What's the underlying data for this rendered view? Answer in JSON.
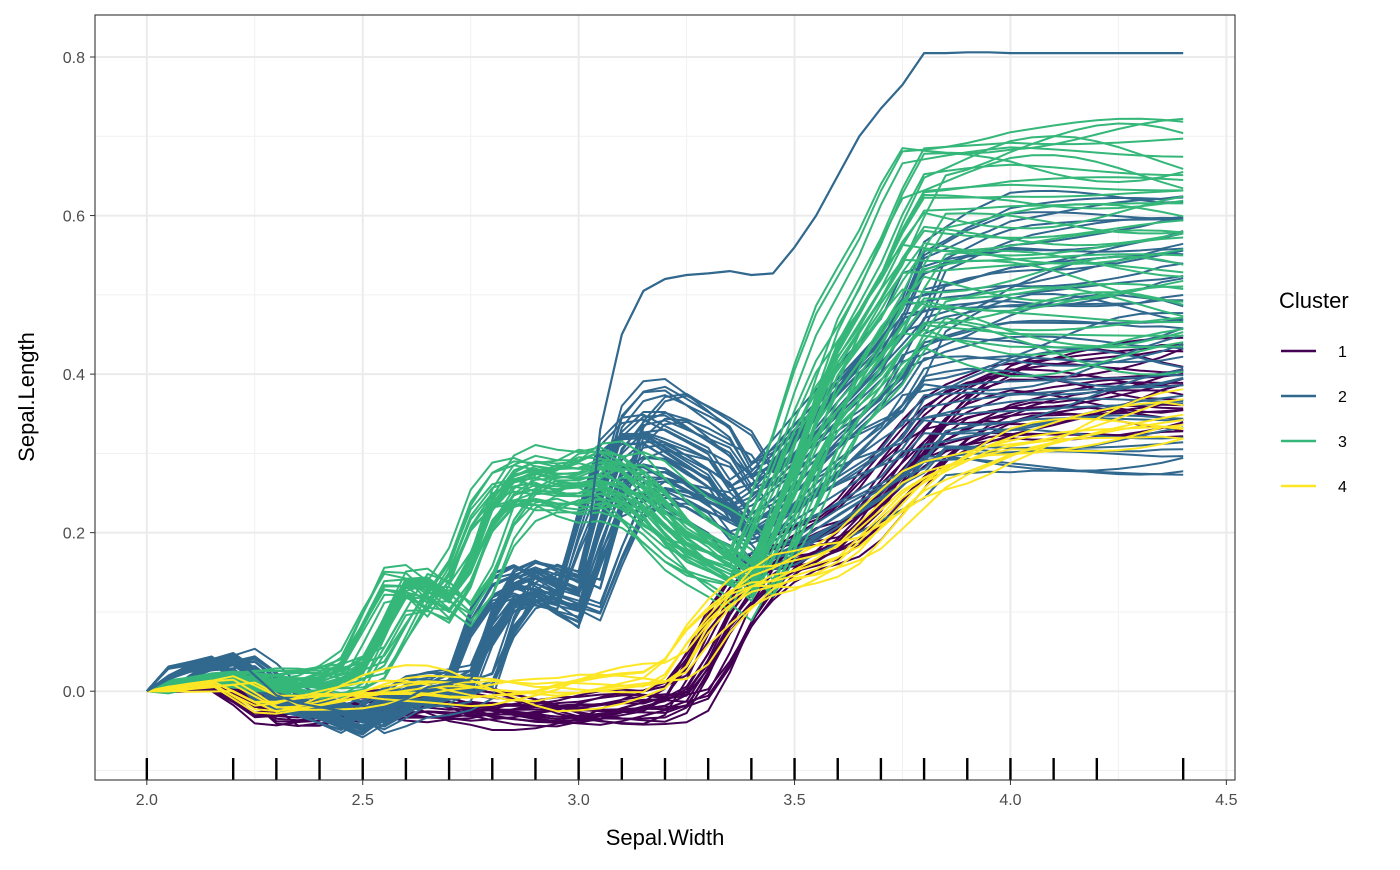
{
  "chart_data": {
    "type": "line",
    "title": "",
    "xlabel": "Sepal.Width",
    "ylabel": "Sepal.Length",
    "xlim": [
      1.88,
      4.52
    ],
    "ylim": [
      -0.112,
      0.853
    ],
    "xticks": [
      2.0,
      2.5,
      3.0,
      3.5,
      4.0,
      4.5
    ],
    "xtick_labels": [
      "2.0",
      "2.5",
      "3.0",
      "3.5",
      "4.0",
      "4.5"
    ],
    "yticks": [
      0.0,
      0.2,
      0.4,
      0.6,
      0.8
    ],
    "ytick_labels": [
      "0.0",
      "0.2",
      "0.4",
      "0.6",
      "0.8"
    ],
    "grid": true,
    "legend": {
      "title": "Cluster",
      "position": "right",
      "entries": [
        {
          "label": "1",
          "color": "#440154"
        },
        {
          "label": "2",
          "color": "#31688E"
        },
        {
          "label": "3",
          "color": "#35B779"
        },
        {
          "label": "4",
          "color": "#FDE725"
        }
      ]
    },
    "rug_x": [
      2.0,
      2.2,
      2.3,
      2.4,
      2.5,
      2.6,
      2.7,
      2.8,
      2.9,
      3.0,
      3.1,
      3.2,
      3.3,
      3.4,
      3.5,
      3.6,
      3.7,
      3.8,
      3.9,
      4.0,
      4.1,
      4.2,
      4.4
    ],
    "x": [
      2.0,
      2.05,
      2.1,
      2.15,
      2.2,
      2.25,
      2.3,
      2.35,
      2.4,
      2.45,
      2.5,
      2.55,
      2.6,
      2.65,
      2.7,
      2.75,
      2.8,
      2.85,
      2.9,
      2.95,
      3.0,
      3.05,
      3.1,
      3.15,
      3.2,
      3.25,
      3.3,
      3.35,
      3.4,
      3.45,
      3.5,
      3.55,
      3.6,
      3.65,
      3.7,
      3.75,
      3.8,
      3.85,
      3.9,
      3.95,
      4.0,
      4.05,
      4.1,
      4.15,
      4.2,
      4.25,
      4.3,
      4.35,
      4.4
    ],
    "cluster_profiles": [
      {
        "cluster": "1",
        "color": "#440154",
        "count": 24,
        "final_range": [
          0.33,
          0.44
        ],
        "profile": [
          0.0,
          0.002,
          0.003,
          0.004,
          0.004,
          -0.01,
          -0.03,
          -0.03,
          -0.025,
          -0.025,
          -0.02,
          -0.015,
          -0.01,
          -0.012,
          -0.015,
          -0.015,
          -0.02,
          -0.022,
          -0.025,
          -0.027,
          -0.03,
          -0.028,
          -0.025,
          -0.022,
          -0.02,
          -0.008,
          0.035,
          0.09,
          0.13,
          0.16,
          0.18,
          0.19,
          0.2,
          0.22,
          0.25,
          0.28,
          0.31,
          0.335,
          0.35,
          0.36,
          0.37,
          0.372,
          0.375,
          0.377,
          0.38,
          0.382,
          0.384,
          0.386,
          0.39
        ]
      },
      {
        "cluster": "2",
        "color": "#31688E",
        "count": 48,
        "final_range": [
          0.28,
          0.63
        ],
        "profile": [
          0.0,
          0.018,
          0.03,
          0.035,
          0.04,
          0.02,
          -0.005,
          -0.015,
          -0.02,
          -0.03,
          -0.04,
          -0.025,
          -0.01,
          -0.005,
          0.0,
          0.01,
          0.08,
          0.12,
          0.13,
          0.12,
          0.11,
          0.19,
          0.26,
          0.28,
          0.28,
          0.265,
          0.25,
          0.235,
          0.2,
          0.21,
          0.23,
          0.25,
          0.27,
          0.29,
          0.31,
          0.33,
          0.37,
          0.375,
          0.38,
          0.382,
          0.385,
          0.386,
          0.387,
          0.388,
          0.389,
          0.39,
          0.391,
          0.392,
          0.395
        ]
      },
      {
        "cluster": "3",
        "color": "#35B779",
        "count": 40,
        "final_range": [
          0.42,
          0.71
        ],
        "profile": [
          0.0,
          0.008,
          0.012,
          0.015,
          0.015,
          0.012,
          0.012,
          0.01,
          0.008,
          0.015,
          0.03,
          0.08,
          0.13,
          0.13,
          0.11,
          0.15,
          0.22,
          0.255,
          0.265,
          0.26,
          0.26,
          0.27,
          0.265,
          0.245,
          0.215,
          0.19,
          0.175,
          0.16,
          0.14,
          0.2,
          0.26,
          0.33,
          0.39,
          0.43,
          0.47,
          0.52,
          0.56,
          0.56,
          0.56,
          0.56,
          0.56,
          0.56,
          0.56,
          0.56,
          0.56,
          0.56,
          0.56,
          0.56,
          0.56
        ]
      },
      {
        "cluster": "4",
        "color": "#FDE725",
        "count": 10,
        "final_range": [
          0.33,
          0.36
        ],
        "profile": [
          0.0,
          0.003,
          0.005,
          0.008,
          0.01,
          -0.005,
          -0.02,
          -0.02,
          -0.015,
          -0.01,
          -0.005,
          0.0,
          0.005,
          0.008,
          0.008,
          0.005,
          0.003,
          0.003,
          0.001,
          0.0,
          0.004,
          0.006,
          0.008,
          0.01,
          0.012,
          0.03,
          0.07,
          0.1,
          0.125,
          0.14,
          0.145,
          0.155,
          0.165,
          0.18,
          0.205,
          0.23,
          0.255,
          0.27,
          0.28,
          0.29,
          0.3,
          0.305,
          0.31,
          0.315,
          0.32,
          0.325,
          0.33,
          0.335,
          0.34
        ]
      }
    ],
    "highlighted_lines": [
      {
        "cluster": "2",
        "color": "#31688E",
        "y": [
          0.0,
          0.015,
          0.025,
          0.035,
          0.045,
          0.02,
          -0.005,
          -0.015,
          -0.02,
          -0.025,
          -0.03,
          -0.02,
          -0.01,
          0.005,
          0.01,
          0.015,
          0.06,
          0.1,
          0.12,
          0.1,
          0.08,
          0.33,
          0.45,
          0.505,
          0.52,
          0.525,
          0.527,
          0.53,
          0.525,
          0.527,
          0.56,
          0.6,
          0.65,
          0.7,
          0.735,
          0.765,
          0.805,
          0.805,
          0.806,
          0.806,
          0.805,
          0.805,
          0.805,
          0.805,
          0.805,
          0.805,
          0.805,
          0.805,
          0.805
        ]
      }
    ]
  }
}
